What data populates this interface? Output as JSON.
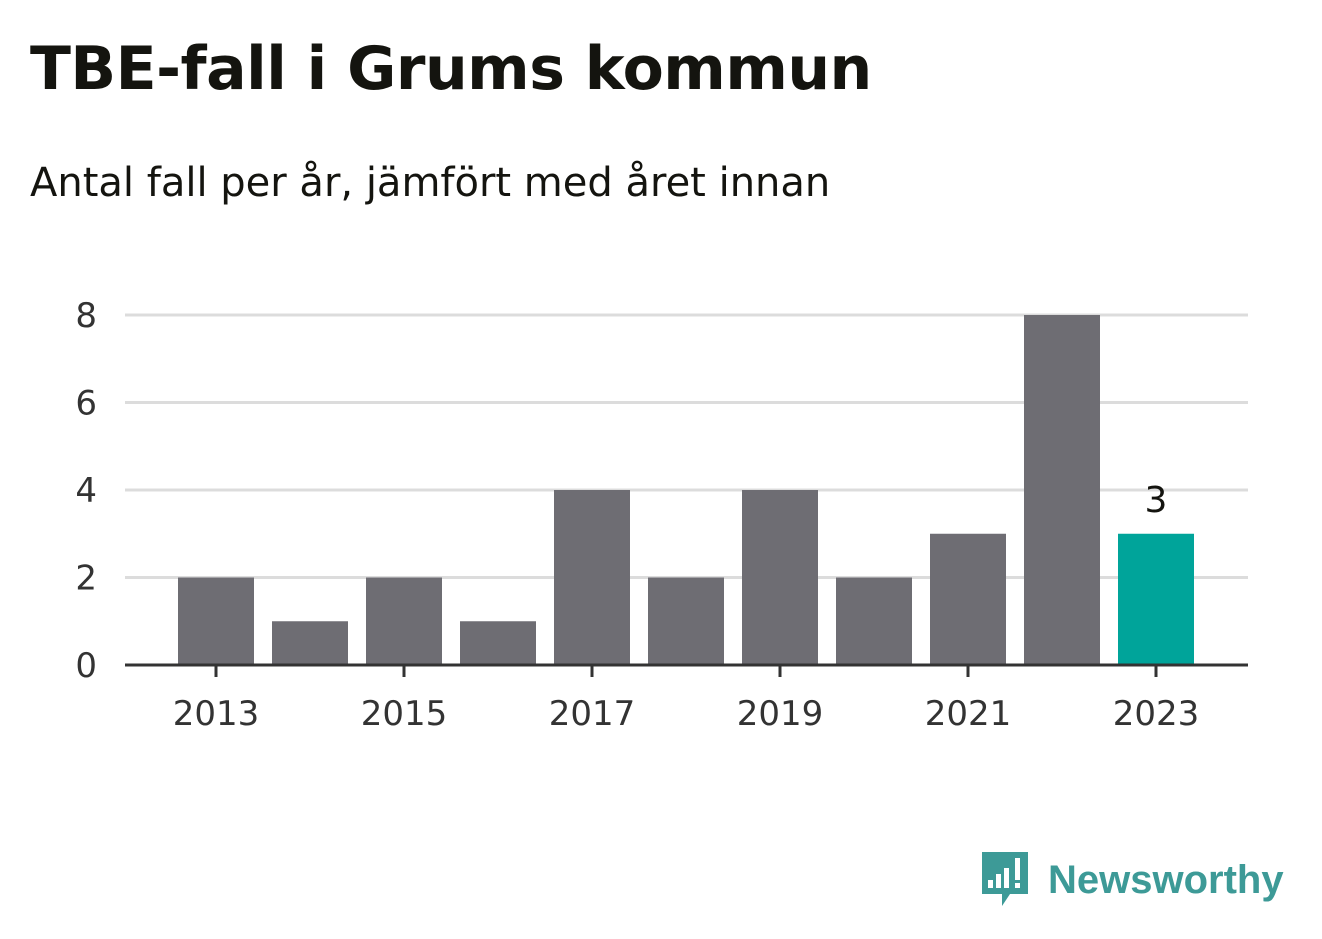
{
  "header": {
    "title": "TBE-fall i Grums kommun",
    "subtitle": "Antal fall per år, jämfört med året innan"
  },
  "brand": {
    "name": "Newsworthy",
    "color": "#3d9a97",
    "icon": "bar-chart-speech-bubble-icon"
  },
  "colors": {
    "bar": "#6e6d73",
    "highlight": "#00a49a",
    "grid": "#dcdcdc",
    "axis": "#333333",
    "text": "#333333"
  },
  "chart_data": {
    "type": "bar",
    "categories": [
      "2013",
      "2014",
      "2015",
      "2016",
      "2017",
      "2018",
      "2019",
      "2020",
      "2021",
      "2022",
      "2023"
    ],
    "values": [
      2,
      1,
      2,
      1,
      4,
      2,
      4,
      2,
      3,
      8,
      3
    ],
    "highlight_index": 10,
    "data_labels": [
      {
        "index": 10,
        "text": "3"
      }
    ],
    "x_tick_labels": [
      "2013",
      "2015",
      "2017",
      "2019",
      "2021",
      "2023"
    ],
    "y_ticks": [
      0,
      2,
      4,
      6,
      8
    ],
    "ylim": [
      0,
      8
    ],
    "xlabel": "",
    "ylabel": "",
    "grid": true,
    "legend": "none"
  }
}
